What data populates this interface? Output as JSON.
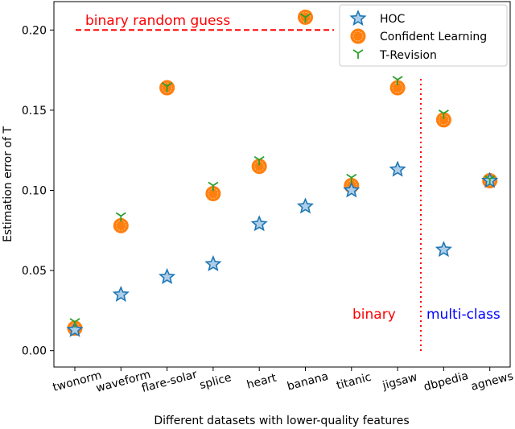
{
  "chart_data": {
    "type": "scatter",
    "xlabel": "Different datasets with lower-quality features",
    "ylabel": "Estimation error of T",
    "categories": [
      "twonorm",
      "waveform",
      "flare-solar",
      "splice",
      "heart",
      "banana",
      "titanic",
      "jigsaw",
      "dbpedia",
      "agnews"
    ],
    "ylim": [
      -0.01,
      0.22
    ],
    "yticks": [
      "0.00",
      "0.05",
      "0.10",
      "0.15",
      "0.20"
    ],
    "grid": false,
    "legend_position": "top-right",
    "series": [
      {
        "name": "HOC",
        "marker": "star",
        "color": "#1f77b4",
        "values": [
          0.013,
          0.035,
          0.046,
          0.054,
          0.079,
          0.09,
          0.1,
          0.113,
          0.063,
          0.106
        ]
      },
      {
        "name": "Confident Learning",
        "marker": "circle",
        "color": "#ff7f0e",
        "values": [
          0.014,
          0.078,
          0.164,
          0.098,
          0.115,
          0.208,
          0.103,
          0.164,
          0.144,
          0.106
        ]
      },
      {
        "name": "T-Revision",
        "marker": "tri_down",
        "color": "#2ca02c",
        "values": [
          0.018,
          0.084,
          0.165,
          0.103,
          0.119,
          0.208,
          0.108,
          0.169,
          0.148,
          0.107
        ]
      }
    ],
    "annotations": {
      "random_guess_label": "binary random guess",
      "random_guess_value": 0.2,
      "binary_label": "binary",
      "multiclass_label": "multi-class",
      "random_guess_color": "#ff0000",
      "binary_color": "#ff0000",
      "multiclass_color": "#0000ff"
    }
  }
}
